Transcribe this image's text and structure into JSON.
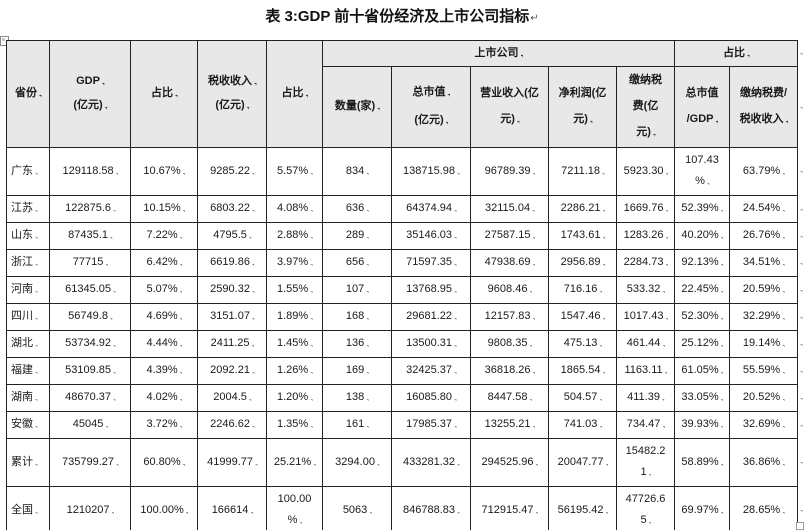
{
  "doc": {
    "title": "表 3:GDP 前十省份经济及上市公司指标",
    "title_end_mark": "↵",
    "cell_end_mark": ".,",
    "row_end_mark": ".,"
  },
  "table": {
    "groups": {
      "listed_companies": "上市公司",
      "share": "占比"
    },
    "columns": [
      [
        "省份"
      ],
      [
        "GDP",
        "(亿元)"
      ],
      [
        "占比"
      ],
      [
        "税收收入",
        "(亿元)"
      ],
      [
        "占比"
      ],
      [
        "数量(家)"
      ],
      [
        "总市值",
        "(亿元)"
      ],
      [
        "营业收入(亿\n元)"
      ],
      [
        "净利润(亿\n元)"
      ],
      [
        "缴纳税\n费(亿\n元)"
      ],
      [
        "总市值\n/GDP"
      ],
      [
        "缴纳税费/\n税收收入"
      ]
    ],
    "rows": [
      {
        "province": "广东",
        "values": [
          "129118.58",
          "10.67%",
          "9285.22",
          "5.57%",
          "834",
          "138715.98",
          "96789.39",
          "7211.18",
          "5923.30",
          "107.43\n%",
          "63.79%"
        ]
      },
      {
        "province": "江苏",
        "values": [
          "122875.6",
          "10.15%",
          "6803.22",
          "4.08%",
          "636",
          "64374.94",
          "32115.04",
          "2286.21",
          "1669.76",
          "52.39%",
          "24.54%"
        ]
      },
      {
        "province": "山东",
        "values": [
          "87435.1",
          "7.22%",
          "4795.5",
          "2.88%",
          "289",
          "35146.03",
          "27587.15",
          "1743.61",
          "1283.26",
          "40.20%",
          "26.76%"
        ]
      },
      {
        "province": "浙江",
        "values": [
          "77715",
          "6.42%",
          "6619.86",
          "3.97%",
          "656",
          "71597.35",
          "47938.69",
          "2956.89",
          "2284.73",
          "92.13%",
          "34.51%"
        ]
      },
      {
        "province": "河南",
        "values": [
          "61345.05",
          "5.07%",
          "2590.32",
          "1.55%",
          "107",
          "13768.95",
          "9608.46",
          "716.16",
          "533.32",
          "22.45%",
          "20.59%"
        ]
      },
      {
        "province": "四川",
        "values": [
          "56749.8",
          "4.69%",
          "3151.07",
          "1.89%",
          "168",
          "29681.22",
          "12157.83",
          "1547.46",
          "1017.43",
          "52.30%",
          "32.29%"
        ]
      },
      {
        "province": "湖北",
        "values": [
          "53734.92",
          "4.44%",
          "2411.25",
          "1.45%",
          "136",
          "13500.31",
          "9808.35",
          "475.13",
          "461.44",
          "25.12%",
          "19.14%"
        ]
      },
      {
        "province": "福建",
        "values": [
          "53109.85",
          "4.39%",
          "2092.21",
          "1.26%",
          "169",
          "32425.37",
          "36818.26",
          "1865.54",
          "1163.11",
          "61.05%",
          "55.59%"
        ]
      },
      {
        "province": "湖南",
        "values": [
          "48670.37",
          "4.02%",
          "2004.5",
          "1.20%",
          "138",
          "16085.80",
          "8447.58",
          "504.57",
          "411.39",
          "33.05%",
          "20.52%"
        ]
      },
      {
        "province": "安徽",
        "values": [
          "45045",
          "3.72%",
          "2246.62",
          "1.35%",
          "161",
          "17985.37",
          "13255.21",
          "741.03",
          "734.47",
          "39.93%",
          "32.69%"
        ]
      },
      {
        "province": "累计",
        "values": [
          "735799.27",
          "60.80%",
          "41999.77",
          "25.21%",
          "3294.00",
          "433281.32",
          "294525.96",
          "20047.77",
          "15482.2\n1",
          "58.89%",
          "36.86%"
        ]
      },
      {
        "province": "全国",
        "values": [
          "1210207",
          "100.00%",
          "166614",
          "100.00\n%",
          "5063",
          "846788.83",
          "712915.47",
          "56195.42",
          "47726.6\n5",
          "69.97%",
          "28.65%"
        ]
      }
    ]
  }
}
